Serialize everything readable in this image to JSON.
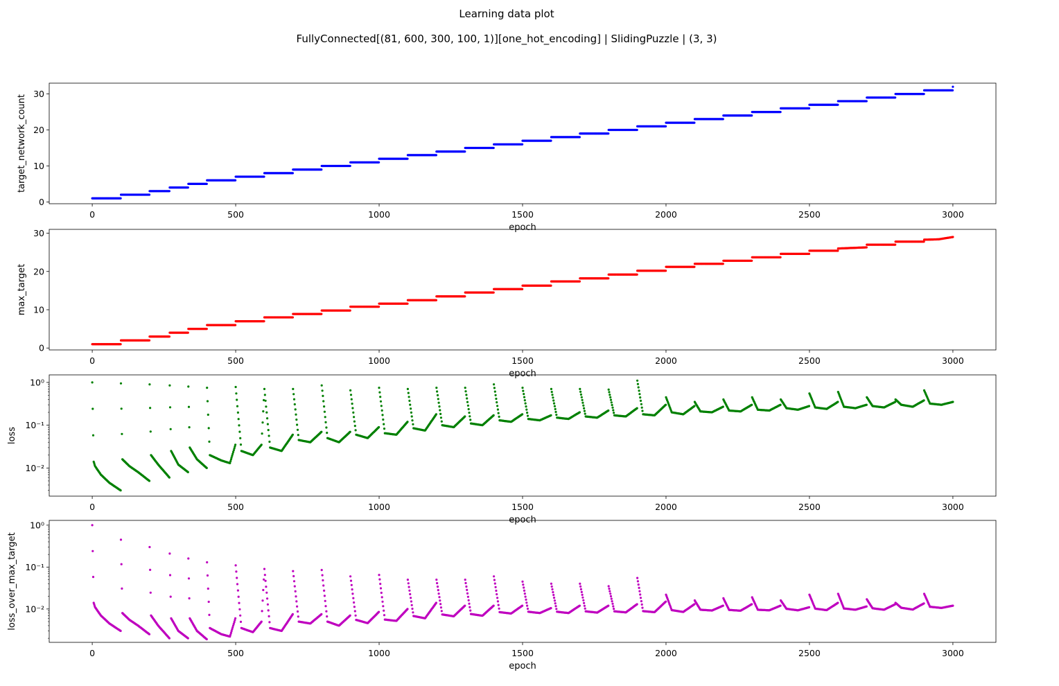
{
  "figure": {
    "title": "Learning data plot",
    "subtitle": "FullyConnected[(81, 600, 300, 100, 1)][one_hot_encoding] | SlidingPuzzle | (3, 3)"
  },
  "chart_data": [
    {
      "type": "scatter",
      "xlabel": "epoch",
      "ylabel": "target_network_count",
      "xlim": [
        -150,
        3150
      ],
      "ylim": [
        -0.5,
        33.0
      ],
      "yscale": "linear",
      "xticks": [
        0,
        500,
        1000,
        1500,
        2000,
        2500,
        3000
      ],
      "yticks": [
        0,
        10,
        20,
        30
      ],
      "grid": false,
      "color": "#0000ff",
      "series": [
        {
          "x": [
            0,
            50,
            99,
            100,
            150,
            199,
            200,
            235,
            269,
            270,
            300,
            334,
            335,
            365,
            399,
            400,
            450,
            499,
            500,
            550,
            599,
            600,
            650,
            699,
            700,
            750,
            799,
            800,
            850,
            899,
            900,
            950,
            999,
            1000,
            1050,
            1099,
            1100,
            1150,
            1199,
            1200,
            1250,
            1299,
            1300,
            1350,
            1399,
            1400,
            1450,
            1499,
            1500,
            1550,
            1599,
            1600,
            1650,
            1699,
            1700,
            1750,
            1799,
            1800,
            1850,
            1899,
            1900,
            1950,
            1999,
            2000,
            2050,
            2099,
            2100,
            2150,
            2199,
            2200,
            2250,
            2299,
            2300,
            2350,
            2399,
            2400,
            2450,
            2499,
            2500,
            2550,
            2599,
            2600,
            2650,
            2699,
            2700,
            2750,
            2799,
            2800,
            2850,
            2899,
            2900,
            2950,
            2999,
            3000
          ],
          "y": [
            1,
            1,
            1,
            2,
            2,
            2,
            3,
            3,
            3,
            4,
            4,
            4,
            5,
            5,
            5,
            6,
            6,
            6,
            7,
            7,
            7,
            8,
            8,
            8,
            9,
            9,
            9,
            10,
            10,
            10,
            11,
            11,
            11,
            12,
            12,
            12,
            13,
            13,
            13,
            14,
            14,
            14,
            15,
            15,
            15,
            16,
            16,
            16,
            17,
            17,
            17,
            18,
            18,
            18,
            19,
            19,
            19,
            20,
            20,
            20,
            21,
            21,
            21,
            22,
            22,
            22,
            23,
            23,
            23,
            24,
            24,
            24,
            25,
            25,
            25,
            26,
            26,
            26,
            27,
            27,
            27,
            28,
            28,
            28,
            29,
            29,
            29,
            30,
            30,
            30,
            31,
            31,
            31,
            32
          ]
        }
      ]
    },
    {
      "type": "scatter",
      "xlabel": "epoch",
      "ylabel": "max_target",
      "xlim": [
        -150,
        3150
      ],
      "ylim": [
        -0.5,
        31.0
      ],
      "yscale": "linear",
      "xticks": [
        0,
        500,
        1000,
        1500,
        2000,
        2500,
        3000
      ],
      "yticks": [
        0,
        10,
        20,
        30
      ],
      "grid": false,
      "color": "#ff0000",
      "series": [
        {
          "x": [
            0,
            99,
            100,
            199,
            200,
            269,
            270,
            334,
            335,
            399,
            400,
            499,
            500,
            599,
            600,
            699,
            700,
            799,
            800,
            899,
            900,
            999,
            1000,
            1099,
            1100,
            1199,
            1200,
            1299,
            1300,
            1399,
            1400,
            1499,
            1500,
            1599,
            1600,
            1699,
            1700,
            1799,
            1800,
            1899,
            1900,
            1999,
            2000,
            2099,
            2100,
            2199,
            2200,
            2299,
            2300,
            2399,
            2400,
            2499,
            2500,
            2599,
            2600,
            2699,
            2700,
            2799,
            2800,
            2899,
            2900,
            2950,
            3000
          ],
          "y": [
            1.0,
            1.0,
            2.0,
            2.0,
            3.0,
            3.0,
            4.0,
            4.0,
            5.0,
            5.0,
            6.0,
            6.0,
            7.0,
            7.0,
            8.0,
            8.0,
            8.9,
            8.9,
            9.8,
            9.8,
            10.8,
            10.8,
            11.6,
            11.6,
            12.5,
            12.5,
            13.5,
            13.5,
            14.5,
            14.5,
            15.4,
            15.4,
            16.3,
            16.3,
            17.4,
            17.4,
            18.2,
            18.2,
            19.2,
            19.2,
            20.2,
            20.2,
            21.2,
            21.2,
            22.0,
            22.0,
            22.8,
            22.8,
            23.7,
            23.7,
            24.6,
            24.6,
            25.4,
            25.4,
            26.0,
            26.3,
            27.0,
            27.0,
            27.8,
            27.8,
            28.3,
            28.4,
            29.0
          ]
        }
      ]
    },
    {
      "type": "scatter",
      "xlabel": "epoch",
      "ylabel": "loss",
      "xlim": [
        -150,
        3150
      ],
      "ylim": [
        0.0022,
        1.5
      ],
      "yscale": "log",
      "xticks": [
        0,
        500,
        1000,
        1500,
        2000,
        2500,
        3000
      ],
      "yticks": [
        0.01,
        0.1,
        1
      ],
      "ytick_labels": [
        "10⁻²",
        "10⁻¹",
        "10⁰"
      ],
      "grid": false,
      "color": "#008000",
      "series": [
        {
          "x": [
            0,
            5,
            10,
            30,
            60,
            99,
            100,
            105,
            130,
            160,
            199,
            200,
            205,
            230,
            269,
            270,
            275,
            300,
            334,
            335,
            340,
            365,
            399,
            400,
            410,
            450,
            480,
            499,
            500,
            520,
            560,
            590,
            600,
            620,
            660,
            699,
            700,
            720,
            760,
            799,
            800,
            820,
            860,
            899,
            900,
            920,
            960,
            999,
            1000,
            1020,
            1060,
            1099,
            1100,
            1120,
            1160,
            1199,
            1200,
            1220,
            1260,
            1299,
            1300,
            1320,
            1360,
            1399,
            1400,
            1420,
            1460,
            1499,
            1500,
            1520,
            1560,
            1599,
            1600,
            1620,
            1660,
            1699,
            1700,
            1720,
            1760,
            1799,
            1800,
            1820,
            1860,
            1899,
            1900,
            1920,
            1960,
            1999,
            2000,
            2020,
            2060,
            2099,
            2100,
            2120,
            2160,
            2199,
            2200,
            2220,
            2260,
            2299,
            2300,
            2320,
            2360,
            2399,
            2400,
            2420,
            2460,
            2499,
            2500,
            2520,
            2560,
            2599,
            2600,
            2620,
            2660,
            2699,
            2700,
            2720,
            2760,
            2799,
            2800,
            2820,
            2860,
            2899,
            2900,
            2920,
            2960,
            3000
          ],
          "y": [
            1.0,
            0.014,
            0.011,
            0.007,
            0.0045,
            0.003,
            0.95,
            0.016,
            0.011,
            0.008,
            0.005,
            0.9,
            0.02,
            0.012,
            0.006,
            0.85,
            0.025,
            0.012,
            0.008,
            0.8,
            0.03,
            0.016,
            0.01,
            0.75,
            0.02,
            0.015,
            0.013,
            0.035,
            0.78,
            0.025,
            0.02,
            0.035,
            0.7,
            0.03,
            0.025,
            0.06,
            0.7,
            0.045,
            0.04,
            0.07,
            0.85,
            0.05,
            0.04,
            0.07,
            0.65,
            0.06,
            0.05,
            0.09,
            0.75,
            0.065,
            0.06,
            0.12,
            0.7,
            0.085,
            0.075,
            0.18,
            0.75,
            0.1,
            0.09,
            0.16,
            0.75,
            0.11,
            0.1,
            0.17,
            0.9,
            0.13,
            0.12,
            0.18,
            0.75,
            0.14,
            0.13,
            0.17,
            0.7,
            0.15,
            0.14,
            0.2,
            0.7,
            0.16,
            0.15,
            0.22,
            0.68,
            0.17,
            0.16,
            0.25,
            1.1,
            0.18,
            0.17,
            0.3,
            0.45,
            0.2,
            0.18,
            0.28,
            0.35,
            0.21,
            0.2,
            0.27,
            0.4,
            0.22,
            0.21,
            0.3,
            0.45,
            0.23,
            0.22,
            0.3,
            0.4,
            0.25,
            0.23,
            0.28,
            0.55,
            0.26,
            0.24,
            0.35,
            0.6,
            0.27,
            0.25,
            0.3,
            0.45,
            0.28,
            0.26,
            0.35,
            0.4,
            0.3,
            0.27,
            0.38,
            0.65,
            0.32,
            0.3,
            0.35
          ]
        }
      ]
    },
    {
      "type": "scatter",
      "xlabel": "epoch",
      "ylabel": "loss_over_max_target",
      "xlim": [
        -150,
        3150
      ],
      "ylim": [
        0.0016,
        1.3
      ],
      "yscale": "log",
      "xticks": [
        0,
        500,
        1000,
        1500,
        2000,
        2500,
        3000
      ],
      "yticks": [
        0.01,
        0.1,
        1
      ],
      "ytick_labels": [
        "10⁻²",
        "10⁻¹",
        "10⁰"
      ],
      "grid": false,
      "color": "#bf00bf",
      "series": [
        {
          "x": [
            0,
            5,
            10,
            30,
            60,
            99,
            100,
            105,
            130,
            160,
            199,
            200,
            205,
            230,
            269,
            270,
            275,
            300,
            334,
            335,
            340,
            365,
            399,
            400,
            410,
            450,
            480,
            499,
            500,
            520,
            560,
            590,
            600,
            620,
            660,
            699,
            700,
            720,
            760,
            799,
            800,
            820,
            860,
            899,
            900,
            920,
            960,
            999,
            1000,
            1020,
            1060,
            1099,
            1100,
            1120,
            1160,
            1199,
            1200,
            1220,
            1260,
            1299,
            1300,
            1320,
            1360,
            1399,
            1400,
            1420,
            1460,
            1499,
            1500,
            1520,
            1560,
            1599,
            1600,
            1620,
            1660,
            1699,
            1700,
            1720,
            1760,
            1799,
            1800,
            1820,
            1860,
            1899,
            1900,
            1920,
            1960,
            1999,
            2000,
            2020,
            2060,
            2099,
            2100,
            2120,
            2160,
            2199,
            2200,
            2220,
            2260,
            2299,
            2300,
            2320,
            2360,
            2399,
            2400,
            2420,
            2460,
            2499,
            2500,
            2520,
            2560,
            2599,
            2600,
            2620,
            2660,
            2699,
            2700,
            2720,
            2760,
            2799,
            2800,
            2820,
            2860,
            2899,
            2900,
            2920,
            2960,
            3000
          ],
          "y": [
            1.0,
            0.014,
            0.011,
            0.007,
            0.0045,
            0.003,
            0.45,
            0.008,
            0.0055,
            0.004,
            0.0025,
            0.3,
            0.007,
            0.004,
            0.002,
            0.21,
            0.006,
            0.003,
            0.002,
            0.16,
            0.006,
            0.003,
            0.0019,
            0.13,
            0.0035,
            0.0025,
            0.0022,
            0.006,
            0.11,
            0.0035,
            0.0028,
            0.005,
            0.09,
            0.0035,
            0.003,
            0.0075,
            0.08,
            0.005,
            0.0045,
            0.0075,
            0.085,
            0.005,
            0.004,
            0.007,
            0.06,
            0.0055,
            0.0046,
            0.0085,
            0.065,
            0.0056,
            0.0052,
            0.01,
            0.05,
            0.0068,
            0.006,
            0.014,
            0.05,
            0.0074,
            0.0067,
            0.012,
            0.05,
            0.0076,
            0.0069,
            0.012,
            0.06,
            0.0084,
            0.0078,
            0.012,
            0.045,
            0.0086,
            0.008,
            0.0105,
            0.04,
            0.0086,
            0.008,
            0.012,
            0.04,
            0.0088,
            0.0082,
            0.012,
            0.035,
            0.0088,
            0.0083,
            0.013,
            0.055,
            0.0089,
            0.0084,
            0.015,
            0.022,
            0.0094,
            0.0085,
            0.013,
            0.016,
            0.0096,
            0.0092,
            0.012,
            0.018,
            0.0095,
            0.0091,
            0.013,
            0.019,
            0.0096,
            0.0093,
            0.012,
            0.016,
            0.0101,
            0.0093,
            0.011,
            0.022,
            0.0102,
            0.0094,
            0.014,
            0.023,
            0.0103,
            0.0096,
            0.0115,
            0.017,
            0.0104,
            0.0096,
            0.013,
            0.014,
            0.0107,
            0.0097,
            0.0136,
            0.023,
            0.0113,
            0.0106,
            0.012
          ]
        }
      ]
    }
  ]
}
